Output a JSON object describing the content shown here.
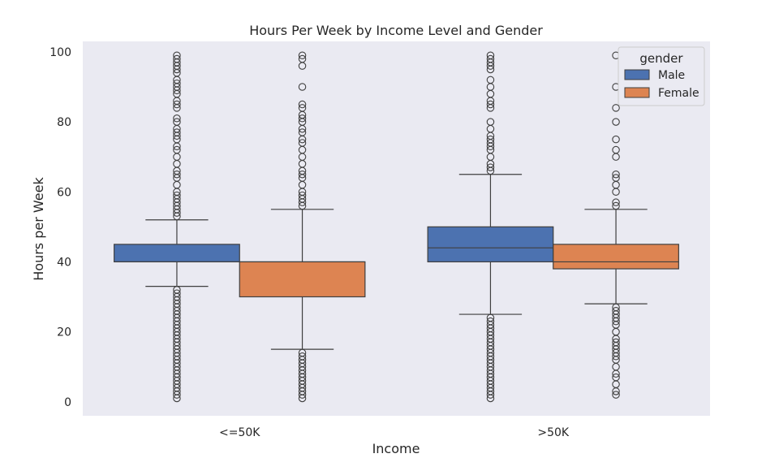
{
  "chart_data": {
    "type": "box",
    "title": "Hours Per Week by Income Level and Gender",
    "xlabel": "Income",
    "ylabel": "Hours per Week",
    "categories": [
      "<=50K",
      ">50K"
    ],
    "ylim": [
      -4,
      103
    ],
    "yticks": [
      0,
      20,
      40,
      60,
      80,
      100
    ],
    "grid": false,
    "background": "#eaeaf2",
    "legend": {
      "title": "gender",
      "position": "top-right"
    },
    "series": [
      {
        "name": "Male",
        "color": "#4c72b0",
        "boxes": [
          {
            "category": "<=50K",
            "whisker_low": 33,
            "q1": 40,
            "median": 40,
            "q3": 45,
            "whisker_high": 52,
            "outliers": [
              1,
              2,
              3,
              4,
              5,
              6,
              7,
              8,
              9,
              10,
              11,
              12,
              13,
              14,
              15,
              16,
              17,
              18,
              19,
              20,
              21,
              22,
              23,
              24,
              25,
              26,
              27,
              28,
              29,
              30,
              31,
              32,
              53,
              54,
              55,
              56,
              57,
              58,
              59,
              60,
              62,
              64,
              65,
              66,
              68,
              70,
              72,
              73,
              75,
              76,
              77,
              78,
              80,
              81,
              84,
              85,
              86,
              88,
              89,
              90,
              91,
              92,
              94,
              95,
              96,
              97,
              98,
              99
            ]
          },
          {
            "category": ">50K",
            "whisker_low": 25,
            "q1": 40,
            "median": 44,
            "q3": 50,
            "whisker_high": 65,
            "outliers": [
              1,
              2,
              3,
              4,
              5,
              6,
              7,
              8,
              9,
              10,
              11,
              12,
              13,
              14,
              15,
              16,
              17,
              18,
              19,
              20,
              21,
              22,
              23,
              24,
              66,
              67,
              68,
              70,
              72,
              73,
              74,
              75,
              76,
              78,
              80,
              84,
              85,
              86,
              88,
              90,
              92,
              95,
              96,
              97,
              98,
              99
            ]
          }
        ]
      },
      {
        "name": "Female",
        "color": "#dd8452",
        "boxes": [
          {
            "category": "<=50K",
            "whisker_low": 15,
            "q1": 30,
            "median": 40,
            "q3": 40,
            "whisker_high": 55,
            "outliers": [
              1,
              2,
              3,
              4,
              5,
              6,
              7,
              8,
              9,
              10,
              11,
              12,
              13,
              14,
              56,
              57,
              58,
              59,
              60,
              62,
              64,
              65,
              66,
              68,
              70,
              72,
              74,
              75,
              77,
              78,
              80,
              81,
              82,
              84,
              85,
              90,
              96,
              98,
              99
            ]
          },
          {
            "category": ">50K",
            "whisker_low": 28,
            "q1": 38,
            "median": 40,
            "q3": 45,
            "whisker_high": 55,
            "outliers": [
              2,
              3,
              5,
              7,
              8,
              10,
              12,
              13,
              14,
              15,
              16,
              17,
              18,
              20,
              22,
              23,
              24,
              25,
              26,
              27,
              56,
              57,
              60,
              62,
              64,
              65,
              70,
              72,
              75,
              80,
              84,
              90,
              99
            ]
          }
        ]
      }
    ]
  }
}
